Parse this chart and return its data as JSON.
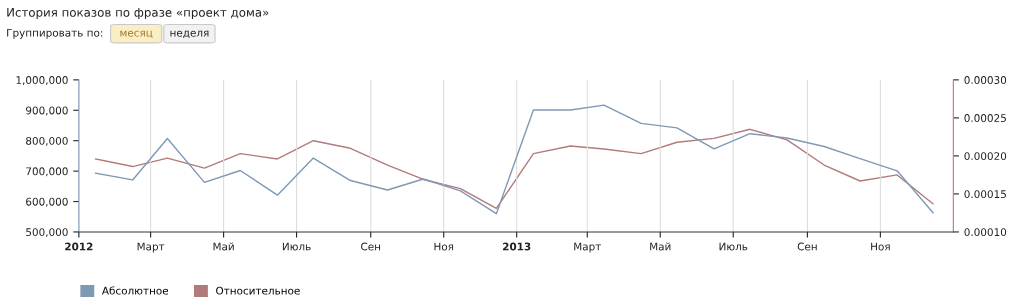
{
  "chart_data": {
    "type": "line",
    "title": "История показов по фразе «проект дома»",
    "annotations": [
      "Группировать по:",
      "месяц",
      "неделя"
    ],
    "x": [
      "2012-01-15",
      "2012-02-15",
      "2012-03-15",
      "2012-04-15",
      "2012-05-15",
      "2012-06-15",
      "2012-07-15",
      "2012-08-15",
      "2012-09-15",
      "2012-10-15",
      "2012-11-15",
      "2012-12-15",
      "2013-01-15",
      "2013-02-15",
      "2013-03-15",
      "2013-04-15",
      "2013-05-15",
      "2013-06-15",
      "2013-07-15",
      "2013-08-15",
      "2013-09-15",
      "2013-10-15",
      "2013-11-15",
      "2013-12-15"
    ],
    "series": [
      {
        "name": "Абсолютное",
        "color": "#7f99b5",
        "values": [
          693000,
          671000,
          807000,
          663000,
          702000,
          621000,
          743000,
          669000,
          638000,
          674000,
          635000,
          560000,
          901000,
          901000,
          917000,
          857000,
          842000,
          773000,
          823000,
          809000,
          781000,
          741000,
          701000,
          563000
        ]
      },
      {
        "name": "Относительное",
        "color": "#b17b7b",
        "axis": "y2",
        "values": [
          0.000196,
          0.000186,
          0.000197,
          0.000184,
          0.000203,
          0.000196,
          0.00022,
          0.00021,
          0.000188,
          0.000169,
          0.000157,
          0.000131,
          0.000203,
          0.000213,
          0.000209,
          0.000203,
          0.000218,
          0.000223,
          0.000235,
          0.000221,
          0.000188,
          0.000167,
          0.000175,
          0.000137
        ]
      }
    ],
    "xlim": [
      "2012-01-01",
      "2014-01-01"
    ],
    "xticks": [
      {
        "value": "2012-01-01",
        "label": "2012"
      },
      {
        "value": "2012-03-01",
        "label": "Март"
      },
      {
        "value": "2012-05-01",
        "label": "Май"
      },
      {
        "value": "2012-07-01",
        "label": "Июль"
      },
      {
        "value": "2012-09-01",
        "label": "Сен"
      },
      {
        "value": "2012-11-01",
        "label": "Ноя"
      },
      {
        "value": "2013-01-01",
        "label": "2013"
      },
      {
        "value": "2013-03-01",
        "label": "Март"
      },
      {
        "value": "2013-05-01",
        "label": "Май"
      },
      {
        "value": "2013-07-01",
        "label": "Июль"
      },
      {
        "value": "2013-09-01",
        "label": "Сен"
      },
      {
        "value": "2013-11-01",
        "label": "Ноя"
      }
    ],
    "ylim": [
      500000,
      1000000
    ],
    "yticks": [
      {
        "value": 500000,
        "label": "500,000"
      },
      {
        "value": 600000,
        "label": "600,000"
      },
      {
        "value": 700000,
        "label": "700,000"
      },
      {
        "value": 800000,
        "label": "800,000"
      },
      {
        "value": 900000,
        "label": "900,000"
      },
      {
        "value": 1000000,
        "label": "1,000,000"
      }
    ],
    "y2lim": [
      0.0001,
      0.0003
    ],
    "y2ticks": [
      {
        "value": 0.0001,
        "label": "0.00010"
      },
      {
        "value": 0.00015,
        "label": "0.00015"
      },
      {
        "value": 0.0002,
        "label": "0.00020"
      },
      {
        "value": 0.00025,
        "label": "0.00025"
      },
      {
        "value": 0.0003,
        "label": "0.00030"
      }
    ],
    "grid": "x",
    "legend": "bottom left",
    "marker": "none",
    "line_style": "solid"
  }
}
